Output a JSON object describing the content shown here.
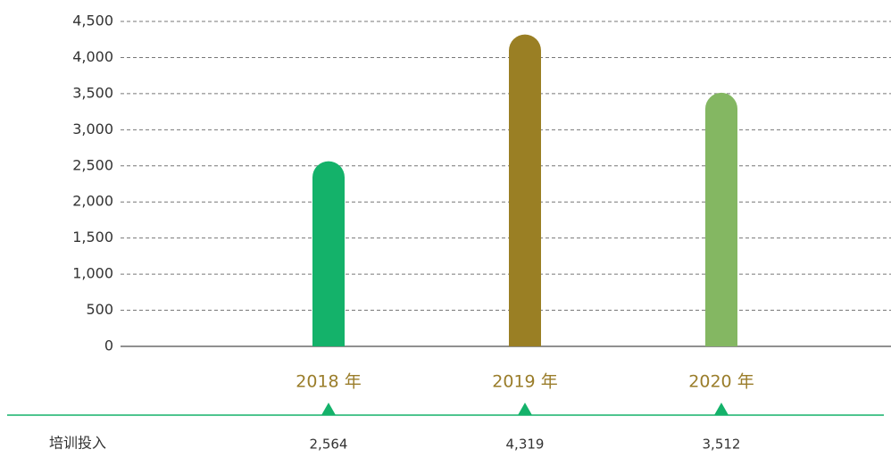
{
  "chart_data": {
    "type": "bar",
    "categories": [
      "2018 年",
      "2019 年",
      "2020 年"
    ],
    "series": [
      {
        "name": "培训投入",
        "colors": [
          "#14b26a",
          "#9a7f24",
          "#84b762"
        ],
        "values": [
          2564,
          4319,
          3512
        ],
        "value_labels": [
          "2,564",
          "4,319",
          "3,512"
        ]
      }
    ],
    "ylim": [
      0,
      4500
    ],
    "yticks": [
      0,
      500,
      {
        "value": 1000,
        "label": "1,000"
      },
      {
        "value": 1500,
        "label": "1,500"
      },
      {
        "value": 2000,
        "label": "2,000"
      },
      {
        "value": 2500,
        "label": "2,500"
      },
      {
        "value": 3000,
        "label": "3,000"
      },
      {
        "value": 3500,
        "label": "3,500"
      },
      {
        "value": 4000,
        "label": "4,000"
      },
      {
        "value": 4500,
        "label": "4,500"
      }
    ],
    "grid": true
  }
}
